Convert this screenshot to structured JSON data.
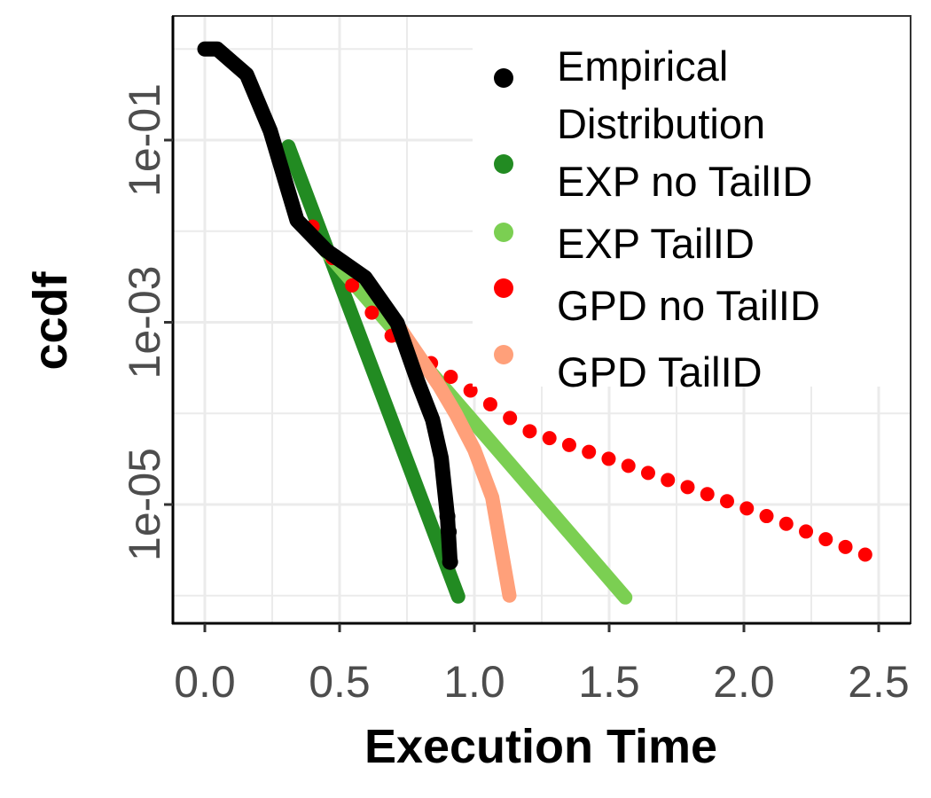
{
  "chart_data": {
    "type": "line",
    "xlabel": "Execution Time",
    "ylabel": "ccdf",
    "x_scale": "linear",
    "y_scale": "log10",
    "xlim": [
      -0.12,
      2.62
    ],
    "ylim_log10": [
      -6.3,
      0.36
    ],
    "x_ticks": [
      0.0,
      0.5,
      1.0,
      1.5,
      2.0,
      2.5
    ],
    "x_tick_labels": [
      "0.0",
      "0.5",
      "1.0",
      "1.5",
      "2.0",
      "2.5"
    ],
    "y_ticks_log10": [
      -1,
      -3,
      -5
    ],
    "y_tick_labels": [
      "1e-01",
      "1e-03",
      "1e-05"
    ],
    "grid": true,
    "legend_position": "top-right",
    "series": [
      {
        "name": "Empirical Distribution",
        "legend_lines": [
          "Empirical",
          "Distribution"
        ],
        "color": "#000000",
        "style": "points",
        "x": [
          0.0,
          0.046,
          0.155,
          0.243,
          0.342,
          0.45,
          0.595,
          0.714,
          0.79,
          0.845,
          0.877,
          0.9,
          0.91
        ],
        "log10_ccdf": [
          0.0,
          0.0,
          -0.28,
          -0.9,
          -1.88,
          -2.21,
          -2.51,
          -3.01,
          -3.65,
          -4.07,
          -4.49,
          -5.13,
          -5.63
        ]
      },
      {
        "name": "EXP no TailID",
        "legend_lines": [
          "EXP no TailID"
        ],
        "color": "#228B22",
        "style": "line",
        "x": [
          0.31,
          0.94
        ],
        "log10_ccdf": [
          -1.07,
          -6.01
        ]
      },
      {
        "name": "EXP TailID",
        "legend_lines": [
          "EXP TailID"
        ],
        "color": "#7BCF52",
        "style": "line",
        "x": [
          0.4,
          1.56
        ],
        "log10_ccdf": [
          -2.05,
          -6.02
        ]
      },
      {
        "name": "GPD no TailID",
        "legend_lines": [
          "GPD no TailID"
        ],
        "color": "#FF0000",
        "style": "dots",
        "x": [
          0.4,
          0.45,
          0.67,
          1.2,
          1.5,
          2.0,
          2.45
        ],
        "log10_ccdf": [
          -1.95,
          -2.2,
          -3.1,
          -4.19,
          -4.5,
          -5.03,
          -5.55
        ]
      },
      {
        "name": "GPD TailID",
        "legend_lines": [
          "GPD TailID"
        ],
        "color": "#FFA07A",
        "style": "line",
        "x": [
          0.72,
          0.87,
          0.93,
          1.0,
          1.066,
          1.13
        ],
        "log10_ccdf": [
          -3.05,
          -3.7,
          -4.0,
          -4.4,
          -4.92,
          -6.0
        ]
      }
    ]
  }
}
